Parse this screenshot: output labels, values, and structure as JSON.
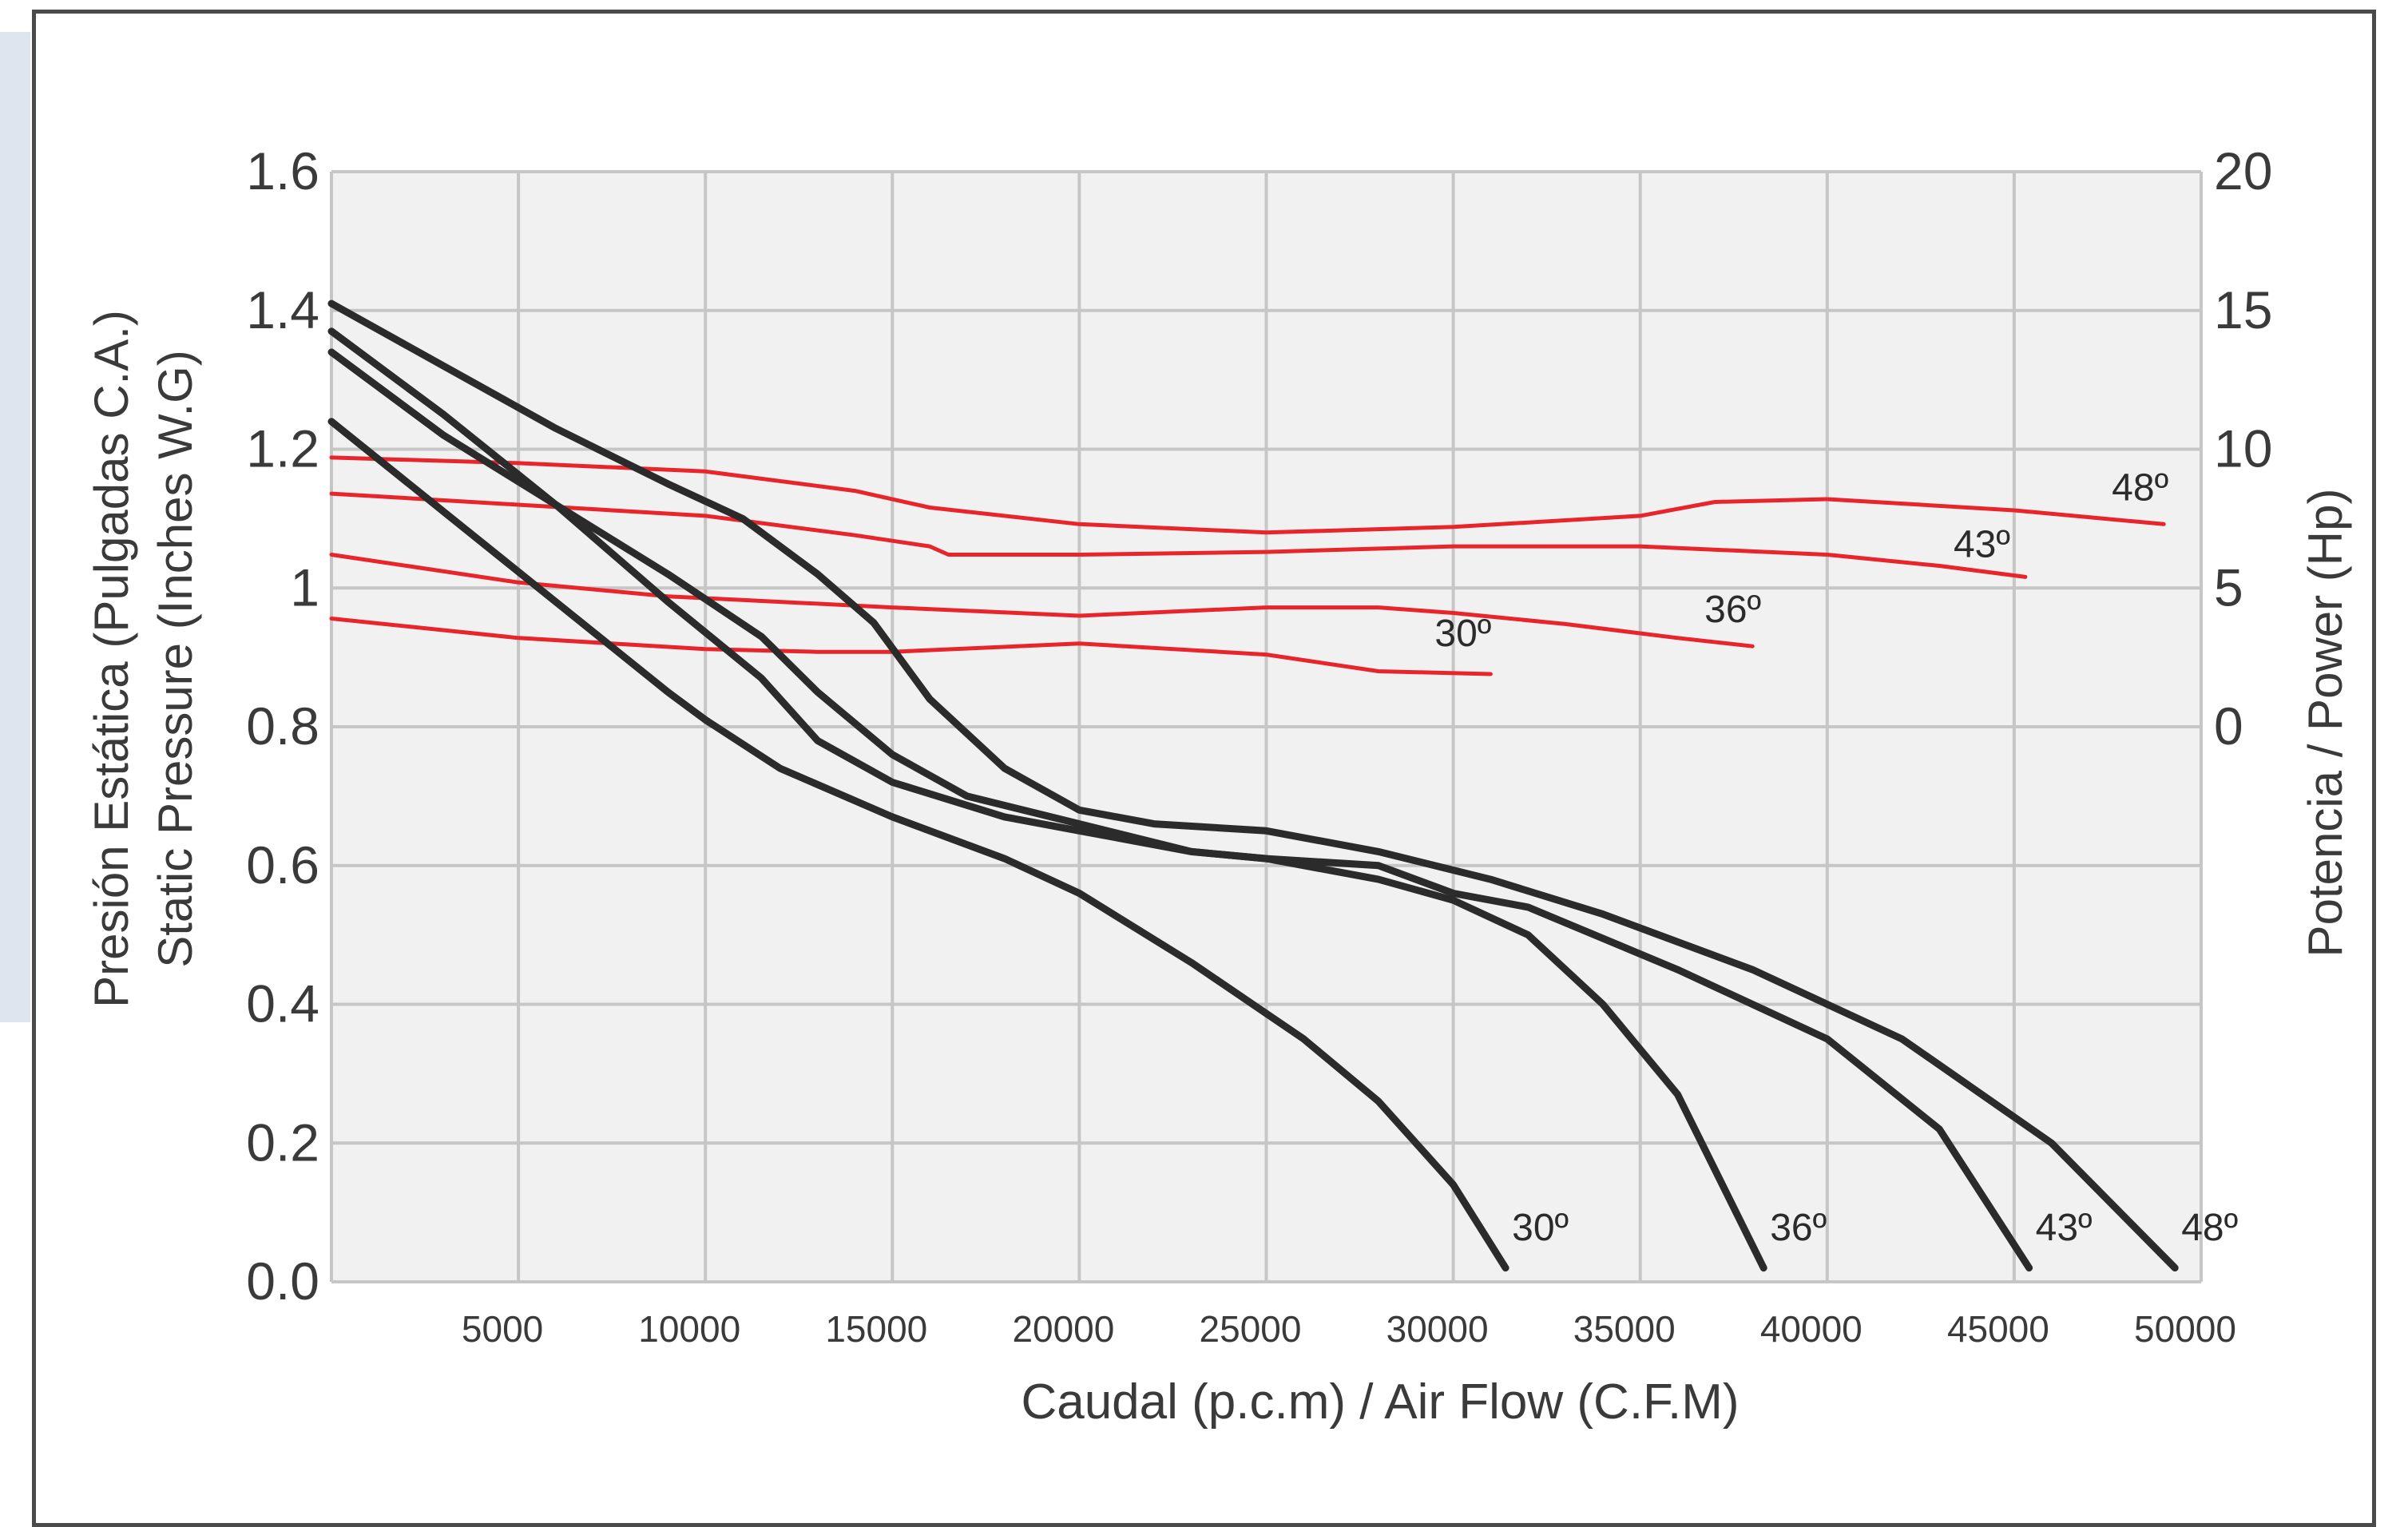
{
  "chart_data": {
    "type": "line",
    "xlabel": "Caudal (p.c.m) / Air Flow (C.F.M)",
    "ylabel_left": [
      "Presión Estática (Pulgadas C.A.)",
      "Static Pressure (Inches W.G)"
    ],
    "ylabel_right": "Potencia / Power (Hp)",
    "xlim": [
      0,
      50000
    ],
    "ylim_left": [
      0,
      1.6
    ],
    "ylim_right": [
      0,
      20
    ],
    "x_ticks": [
      5000,
      10000,
      15000,
      20000,
      25000,
      30000,
      35000,
      40000,
      45000,
      50000
    ],
    "x_tick_labels": [
      "5000",
      "10000",
      "15000",
      "20000",
      "25000",
      "30000",
      "35000",
      "40000",
      "45000",
      "50000"
    ],
    "y_left_ticks": [
      0,
      0.2,
      0.4,
      0.6,
      0.8,
      1.0,
      1.2,
      1.4,
      1.6
    ],
    "y_left_tick_labels": [
      "0.0",
      "0.2",
      "0.4",
      "0.6",
      "0.8",
      "1",
      "1.2",
      "1.4",
      "1.6"
    ],
    "y_right_ticks": [
      0,
      5,
      10,
      15,
      20
    ],
    "y_right_tick_labels": [
      "0",
      "5",
      "10",
      "15",
      "20"
    ],
    "grid": true,
    "colors": {
      "pressure": "#2b2b2b",
      "power": "#e8252b",
      "grid": "#c6c6c6",
      "plot_bg": "#f1f1f1"
    },
    "pressure_series": [
      {
        "name": "30º",
        "points": [
          [
            0,
            1.24
          ],
          [
            3000,
            1.11
          ],
          [
            6000,
            0.98
          ],
          [
            9000,
            0.85
          ],
          [
            10000,
            0.81
          ],
          [
            12000,
            0.74
          ],
          [
            15000,
            0.67
          ],
          [
            18000,
            0.61
          ],
          [
            20000,
            0.56
          ],
          [
            23000,
            0.46
          ],
          [
            26000,
            0.35
          ],
          [
            28000,
            0.26
          ],
          [
            30000,
            0.14
          ],
          [
            31400,
            0.02
          ]
        ]
      },
      {
        "name": "36º",
        "points": [
          [
            0,
            1.37
          ],
          [
            3000,
            1.25
          ],
          [
            6000,
            1.12
          ],
          [
            9000,
            0.98
          ],
          [
            11500,
            0.87
          ],
          [
            13000,
            0.78
          ],
          [
            15000,
            0.72
          ],
          [
            18000,
            0.67
          ],
          [
            20000,
            0.65
          ],
          [
            23000,
            0.62
          ],
          [
            25000,
            0.61
          ],
          [
            28000,
            0.58
          ],
          [
            30000,
            0.55
          ],
          [
            32000,
            0.5
          ],
          [
            34000,
            0.4
          ],
          [
            36000,
            0.27
          ],
          [
            38300,
            0.02
          ]
        ]
      },
      {
        "name": "43º",
        "points": [
          [
            0,
            1.34
          ],
          [
            3000,
            1.22
          ],
          [
            6000,
            1.12
          ],
          [
            9000,
            1.02
          ],
          [
            11500,
            0.93
          ],
          [
            13000,
            0.85
          ],
          [
            15000,
            0.76
          ],
          [
            17000,
            0.7
          ],
          [
            20000,
            0.66
          ],
          [
            23000,
            0.62
          ],
          [
            25000,
            0.61
          ],
          [
            28000,
            0.6
          ],
          [
            30000,
            0.56
          ],
          [
            32000,
            0.54
          ],
          [
            36000,
            0.45
          ],
          [
            40000,
            0.35
          ],
          [
            43000,
            0.22
          ],
          [
            45400,
            0.02
          ]
        ]
      },
      {
        "name": "48º",
        "points": [
          [
            0,
            1.41
          ],
          [
            3000,
            1.32
          ],
          [
            6000,
            1.23
          ],
          [
            9000,
            1.15
          ],
          [
            11000,
            1.1
          ],
          [
            13000,
            1.02
          ],
          [
            14500,
            0.95
          ],
          [
            16000,
            0.84
          ],
          [
            18000,
            0.74
          ],
          [
            20000,
            0.68
          ],
          [
            22000,
            0.66
          ],
          [
            25000,
            0.65
          ],
          [
            28000,
            0.62
          ],
          [
            31000,
            0.58
          ],
          [
            34000,
            0.53
          ],
          [
            38000,
            0.45
          ],
          [
            42000,
            0.35
          ],
          [
            46000,
            0.2
          ],
          [
            49300,
            0.02
          ]
        ]
      }
    ],
    "power_series": [
      {
        "name": "30º",
        "points": [
          [
            0,
            3.9
          ],
          [
            5000,
            3.2
          ],
          [
            10000,
            2.8
          ],
          [
            13000,
            2.7
          ],
          [
            15000,
            2.7
          ],
          [
            20000,
            3.0
          ],
          [
            25000,
            2.6
          ],
          [
            28000,
            2.0
          ],
          [
            31000,
            1.9
          ]
        ]
      },
      {
        "name": "36º",
        "points": [
          [
            0,
            6.2
          ],
          [
            5000,
            5.2
          ],
          [
            9000,
            4.7
          ],
          [
            12000,
            4.5
          ],
          [
            15000,
            4.3
          ],
          [
            20000,
            4.0
          ],
          [
            25000,
            4.3
          ],
          [
            28000,
            4.3
          ],
          [
            30000,
            4.1
          ],
          [
            33000,
            3.7
          ],
          [
            36000,
            3.2
          ],
          [
            38000,
            2.9
          ]
        ]
      },
      {
        "name": "43º",
        "points": [
          [
            0,
            8.4
          ],
          [
            5000,
            8.0
          ],
          [
            10000,
            7.6
          ],
          [
            14000,
            6.9
          ],
          [
            16000,
            6.5
          ],
          [
            16500,
            6.2
          ],
          [
            20000,
            6.2
          ],
          [
            25000,
            6.3
          ],
          [
            30000,
            6.5
          ],
          [
            35000,
            6.5
          ],
          [
            40000,
            6.2
          ],
          [
            43000,
            5.8
          ],
          [
            45300,
            5.4
          ]
        ]
      },
      {
        "name": "48º",
        "points": [
          [
            0,
            9.7
          ],
          [
            5000,
            9.5
          ],
          [
            10000,
            9.2
          ],
          [
            14000,
            8.5
          ],
          [
            16000,
            7.9
          ],
          [
            20000,
            7.3
          ],
          [
            25000,
            7.0
          ],
          [
            30000,
            7.2
          ],
          [
            35000,
            7.6
          ],
          [
            37000,
            8.1
          ],
          [
            40000,
            8.2
          ],
          [
            45000,
            7.8
          ],
          [
            49000,
            7.3
          ]
        ]
      }
    ],
    "pressure_end_labels": [
      "30º",
      "36º",
      "43º",
      "48º"
    ],
    "power_end_labels": [
      "30º",
      "36º",
      "43º",
      "48º"
    ]
  }
}
